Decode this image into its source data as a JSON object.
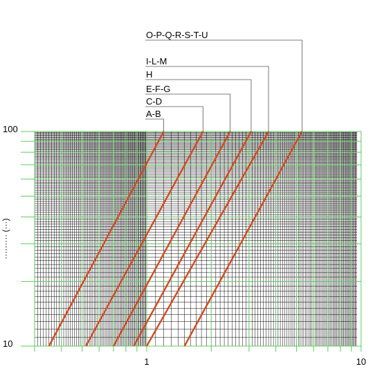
{
  "chart_data": {
    "type": "line",
    "title": "",
    "xlabel": "",
    "ylabel": "········· (···)",
    "xscale": "log",
    "yscale": "log",
    "xlim": [
      0.3,
      10
    ],
    "ylim": [
      10,
      100
    ],
    "x_tick_labels": [
      "1",
      "10"
    ],
    "y_tick_labels": [
      "10",
      "100"
    ],
    "grid": true,
    "colors": {
      "series": "#d24a1e",
      "minor_grid": "#000000",
      "major_grid": "#5fc85f",
      "leader": "#555555"
    },
    "series": [
      {
        "name": "A-B",
        "x": [
          0.35,
          1.2
        ],
        "y": [
          10,
          100
        ]
      },
      {
        "name": "C-D",
        "x": [
          0.52,
          1.83
        ],
        "y": [
          10,
          100
        ]
      },
      {
        "name": "E-F-G",
        "x": [
          0.7,
          2.45
        ],
        "y": [
          10,
          100
        ]
      },
      {
        "name": "H",
        "x": [
          0.87,
          3.07
        ],
        "y": [
          10,
          100
        ]
      },
      {
        "name": "I-L-M",
        "x": [
          1.0,
          3.7
        ],
        "y": [
          10,
          100
        ]
      },
      {
        "name": "O-P-Q-R-S-T-U",
        "x": [
          1.5,
          5.3
        ],
        "y": [
          10,
          100
        ]
      }
    ]
  }
}
